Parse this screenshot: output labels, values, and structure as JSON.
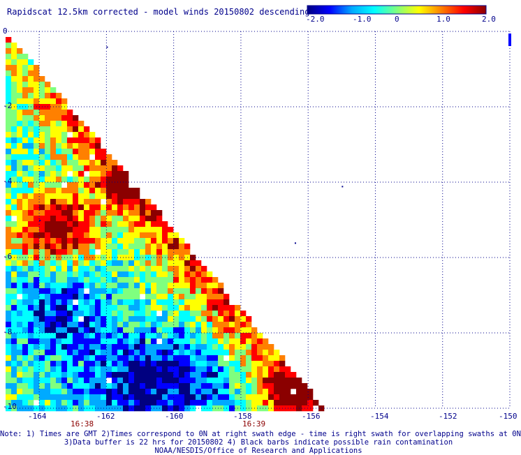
{
  "title": "Rapidscat 12.5km corrected - model winds 20150802 descending",
  "colorbar": {
    "labels": [
      "-2.0",
      "-1.0",
      "0",
      "1.0",
      "2.0"
    ],
    "range": [
      -2.0,
      2.0
    ],
    "colors": [
      "#000080",
      "#0000ff",
      "#00aaff",
      "#00ffff",
      "#7fff7f",
      "#ffff00",
      "#ff8000",
      "#ff0000",
      "#8b0000"
    ]
  },
  "map": {
    "lon_range": [
      -165,
      -150
    ],
    "lat_range": [
      -10,
      0
    ],
    "x_ticks": [
      "-164",
      "-162",
      "-160",
      "-158",
      "-156",
      "-154",
      "-152",
      "-150"
    ],
    "y_ticks": [
      "0",
      "-2",
      "-4",
      "-6",
      "-8",
      "-10"
    ],
    "grid": "dotted",
    "swath_edge_line": "diagonal from (-165, 0) to (-156, -10)",
    "colors": {
      "axis": "#00008b",
      "time": "#8b0000"
    }
  },
  "time_labels": [
    {
      "text": "16:38",
      "lon": -163.0
    },
    {
      "text": "16:39",
      "lon": -158.0
    }
  ],
  "note": {
    "line1": "Note: 1) Times are GMT 2)Times correspond to 0N at right swath edge - time is right swath for overlapping swaths at 0N",
    "line2": "3)Data buffer is 22 hrs for 20150802 4) Black barbs indicate possible rain contamination",
    "line3": "NOAA/NESDIS/Office of Research and Applications"
  }
}
